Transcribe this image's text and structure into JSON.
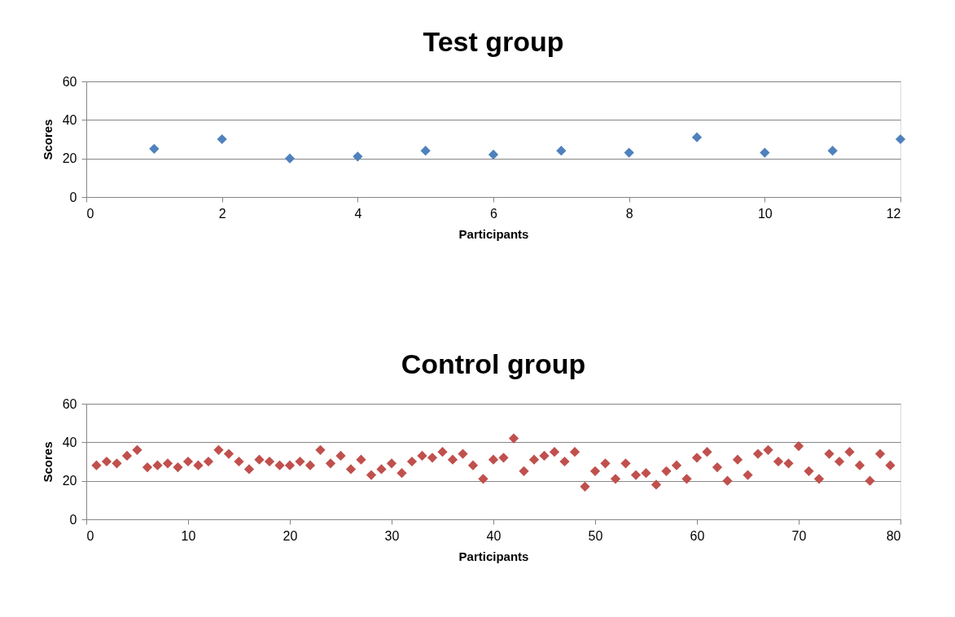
{
  "chart_data": [
    {
      "type": "scatter",
      "title": "Test group",
      "xlabel": "Participants",
      "ylabel": "Scores",
      "marker": "diamond",
      "grid": "y",
      "legend": false,
      "xlim": [
        0,
        12
      ],
      "xticks": [
        0,
        2,
        4,
        6,
        8,
        10,
        12
      ],
      "ylim": [
        0,
        60
      ],
      "yticks": [
        0,
        20,
        40,
        60
      ],
      "series": [
        {
          "color": "#4f81bd",
          "x": [
            1,
            2,
            3,
            4,
            5,
            6,
            7,
            8,
            9,
            10,
            11,
            12
          ],
          "values": [
            25,
            30,
            20,
            21,
            24,
            22,
            24,
            23,
            31,
            23,
            24,
            30
          ]
        }
      ]
    },
    {
      "type": "scatter",
      "title": "Control group",
      "xlabel": "Participants",
      "ylabel": "Scores",
      "marker": "diamond",
      "grid": "y",
      "legend": false,
      "xlim": [
        0,
        80
      ],
      "xticks": [
        0,
        10,
        20,
        30,
        40,
        50,
        60,
        70,
        80
      ],
      "ylim": [
        0,
        60
      ],
      "yticks": [
        0,
        20,
        40,
        60
      ],
      "series": [
        {
          "color": "#c0504d",
          "x": [
            1,
            2,
            3,
            4,
            5,
            6,
            7,
            8,
            9,
            10,
            11,
            12,
            13,
            14,
            15,
            16,
            17,
            18,
            19,
            20,
            21,
            22,
            23,
            24,
            25,
            26,
            27,
            28,
            29,
            30,
            31,
            32,
            33,
            34,
            35,
            36,
            37,
            38,
            39,
            40,
            41,
            42,
            43,
            44,
            45,
            46,
            47,
            48,
            49,
            50,
            51,
            52,
            53,
            54,
            55,
            56,
            57,
            58,
            59,
            60,
            61,
            62,
            63,
            64,
            65,
            66,
            67,
            68,
            69,
            70,
            71,
            72,
            73,
            74,
            75,
            76,
            77,
            78,
            79
          ],
          "values": [
            28,
            30,
            29,
            33,
            36,
            27,
            28,
            29,
            27,
            30,
            28,
            30,
            36,
            34,
            30,
            26,
            31,
            30,
            28,
            28,
            30,
            28,
            36,
            29,
            33,
            26,
            31,
            23,
            26,
            29,
            24,
            30,
            33,
            32,
            35,
            31,
            34,
            28,
            21,
            31,
            32,
            42,
            25,
            31,
            33,
            35,
            30,
            35,
            17,
            25,
            29,
            21,
            29,
            23,
            24,
            18,
            25,
            28,
            21,
            32,
            35,
            27,
            20,
            31,
            23,
            34,
            36,
            30,
            29,
            38,
            25,
            21,
            34,
            30,
            35,
            28,
            20,
            34,
            28
          ]
        }
      ]
    }
  ]
}
